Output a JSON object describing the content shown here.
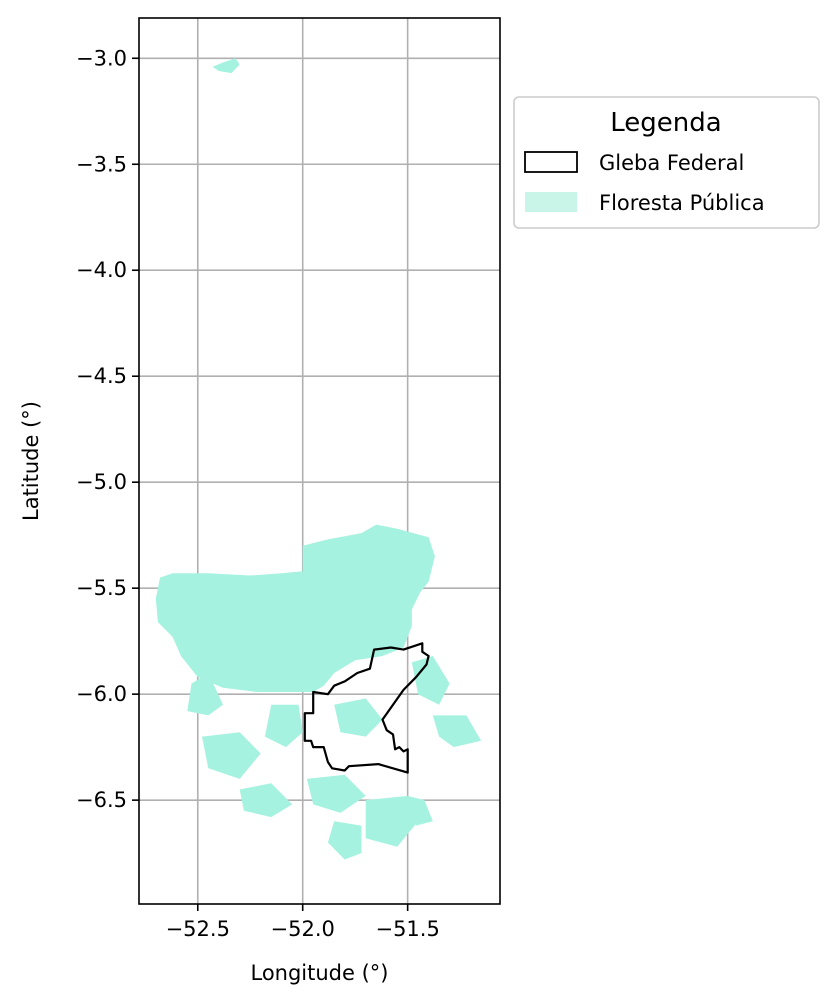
{
  "chart_data": {
    "type": "map",
    "xlabel": "Longitude (°)",
    "ylabel": "Latitude (°)",
    "xlim": [
      -52.78,
      -51.06
    ],
    "ylim": [
      -6.99,
      -2.81
    ],
    "x_ticks": [
      -52.5,
      -52.0,
      -51.5
    ],
    "x_tick_labels": [
      "−52.5",
      "−52.0",
      "−51.5"
    ],
    "y_ticks": [
      -3.0,
      -3.5,
      -4.0,
      -4.5,
      -5.0,
      -5.5,
      -6.0,
      -6.5
    ],
    "y_tick_labels": [
      "−3.0",
      "−3.5",
      "−4.0",
      "−4.5",
      "−5.0",
      "−5.5",
      "−6.0",
      "−6.5"
    ],
    "grid": true,
    "legend": {
      "title": "Legenda",
      "placement": "outside-upper-right",
      "entries": [
        {
          "label": "Gleba Federal",
          "style": "outline",
          "edge_color": "#000000"
        },
        {
          "label": "Floresta Pública",
          "style": "fill",
          "fill_color": "#c8f5e8"
        }
      ]
    },
    "layers": [
      {
        "name": "Floresta Pública",
        "color": "#a6f2e0",
        "polygons": [
          [
            [
              -52.68,
              -5.45
            ],
            [
              -52.62,
              -5.43
            ],
            [
              -52.45,
              -5.43
            ],
            [
              -52.25,
              -5.44
            ],
            [
              -52.1,
              -5.43
            ],
            [
              -52.0,
              -5.42
            ],
            [
              -52.0,
              -5.3
            ],
            [
              -51.88,
              -5.27
            ],
            [
              -51.72,
              -5.24
            ],
            [
              -51.65,
              -5.2
            ],
            [
              -51.55,
              -5.22
            ],
            [
              -51.4,
              -5.26
            ],
            [
              -51.37,
              -5.35
            ],
            [
              -51.4,
              -5.47
            ],
            [
              -51.44,
              -5.52
            ],
            [
              -51.48,
              -5.6
            ],
            [
              -51.48,
              -5.68
            ],
            [
              -51.52,
              -5.78
            ],
            [
              -51.62,
              -5.82
            ],
            [
              -51.75,
              -5.84
            ],
            [
              -51.85,
              -5.9
            ],
            [
              -51.9,
              -5.96
            ],
            [
              -51.95,
              -5.99
            ],
            [
              -52.05,
              -5.99
            ],
            [
              -52.22,
              -5.99
            ],
            [
              -52.38,
              -5.97
            ],
            [
              -52.5,
              -5.92
            ],
            [
              -52.58,
              -5.82
            ],
            [
              -52.62,
              -5.73
            ],
            [
              -52.69,
              -5.66
            ],
            [
              -52.7,
              -5.55
            ]
          ],
          [
            [
              -52.43,
              -3.04
            ],
            [
              -52.38,
              -3.02
            ],
            [
              -52.32,
              -3.0
            ],
            [
              -52.3,
              -3.03
            ],
            [
              -52.34,
              -3.07
            ],
            [
              -52.4,
              -3.06
            ]
          ],
          [
            [
              -52.53,
              -5.95
            ],
            [
              -52.45,
              -5.9
            ],
            [
              -52.38,
              -6.05
            ],
            [
              -52.45,
              -6.1
            ],
            [
              -52.55,
              -6.08
            ]
          ],
          [
            [
              -52.48,
              -6.2
            ],
            [
              -52.3,
              -6.18
            ],
            [
              -52.2,
              -6.28
            ],
            [
              -52.3,
              -6.4
            ],
            [
              -52.45,
              -6.35
            ]
          ],
          [
            [
              -52.3,
              -6.45
            ],
            [
              -52.15,
              -6.42
            ],
            [
              -52.05,
              -6.52
            ],
            [
              -52.15,
              -6.58
            ],
            [
              -52.28,
              -6.55
            ]
          ],
          [
            [
              -52.15,
              -6.05
            ],
            [
              -52.02,
              -6.05
            ],
            [
              -52.0,
              -6.18
            ],
            [
              -52.08,
              -6.25
            ],
            [
              -52.18,
              -6.2
            ]
          ],
          [
            [
              -51.98,
              -6.4
            ],
            [
              -51.8,
              -6.38
            ],
            [
              -51.7,
              -6.48
            ],
            [
              -51.82,
              -6.56
            ],
            [
              -51.95,
              -6.52
            ]
          ],
          [
            [
              -51.7,
              -6.5
            ],
            [
              -51.5,
              -6.48
            ],
            [
              -51.45,
              -6.6
            ],
            [
              -51.55,
              -6.72
            ],
            [
              -51.7,
              -6.68
            ]
          ],
          [
            [
              -51.85,
              -6.6
            ],
            [
              -51.72,
              -6.62
            ],
            [
              -51.72,
              -6.75
            ],
            [
              -51.8,
              -6.78
            ],
            [
              -51.88,
              -6.7
            ]
          ],
          [
            [
              -51.48,
              -5.85
            ],
            [
              -51.38,
              -5.82
            ],
            [
              -51.3,
              -5.95
            ],
            [
              -51.35,
              -6.05
            ],
            [
              -51.45,
              -6.0
            ]
          ],
          [
            [
              -51.38,
              -6.1
            ],
            [
              -51.22,
              -6.1
            ],
            [
              -51.15,
              -6.22
            ],
            [
              -51.28,
              -6.25
            ],
            [
              -51.35,
              -6.2
            ]
          ],
          [
            [
              -51.5,
              -6.48
            ],
            [
              -51.42,
              -6.5
            ],
            [
              -51.38,
              -6.6
            ],
            [
              -51.46,
              -6.62
            ]
          ],
          [
            [
              -51.85,
              -6.05
            ],
            [
              -51.7,
              -6.02
            ],
            [
              -51.62,
              -6.12
            ],
            [
              -51.7,
              -6.2
            ],
            [
              -51.82,
              -6.18
            ]
          ]
        ]
      },
      {
        "name": "Gleba Federal",
        "color": "#000000",
        "polygons": [
          [
            [
              -51.95,
              -5.99
            ],
            [
              -51.88,
              -6.0
            ],
            [
              -51.85,
              -5.96
            ],
            [
              -51.8,
              -5.94
            ],
            [
              -51.74,
              -5.9
            ],
            [
              -51.68,
              -5.88
            ],
            [
              -51.66,
              -5.79
            ],
            [
              -51.58,
              -5.78
            ],
            [
              -51.52,
              -5.79
            ],
            [
              -51.46,
              -5.77
            ],
            [
              -51.43,
              -5.76
            ],
            [
              -51.43,
              -5.8
            ],
            [
              -51.4,
              -5.82
            ],
            [
              -51.41,
              -5.86
            ],
            [
              -51.46,
              -5.92
            ],
            [
              -51.52,
              -5.98
            ],
            [
              -51.57,
              -6.05
            ],
            [
              -51.62,
              -6.12
            ],
            [
              -51.6,
              -6.17
            ],
            [
              -51.57,
              -6.19
            ],
            [
              -51.56,
              -6.26
            ],
            [
              -51.54,
              -6.25
            ],
            [
              -51.52,
              -6.27
            ],
            [
              -51.5,
              -6.26
            ],
            [
              -51.5,
              -6.37
            ],
            [
              -51.64,
              -6.33
            ],
            [
              -51.78,
              -6.34
            ],
            [
              -51.8,
              -6.36
            ],
            [
              -51.86,
              -6.35
            ],
            [
              -51.88,
              -6.32
            ],
            [
              -51.9,
              -6.25
            ],
            [
              -51.95,
              -6.25
            ],
            [
              -51.96,
              -6.22
            ],
            [
              -51.99,
              -6.22
            ],
            [
              -51.99,
              -6.09
            ],
            [
              -51.95,
              -6.09
            ]
          ]
        ]
      }
    ]
  }
}
